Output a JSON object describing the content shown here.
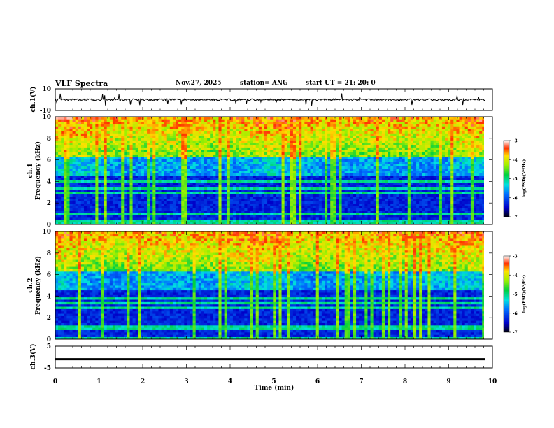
{
  "header": {
    "title": "VLF Spectra",
    "date": "Nov.27, 2025",
    "station": "station= ANG",
    "start": "start  UT  =   21: 20: 0"
  },
  "chart_data": [
    {
      "type": "line",
      "panel": "ch1-waveform",
      "ylabel": "ch.1(V)",
      "ylim": [
        -10,
        10
      ],
      "y_ticks": [
        "10",
        "-10"
      ]
    },
    {
      "type": "heatmap",
      "panel": "ch1-spectrogram",
      "ylabel_line1": "ch.1",
      "ylabel_line2": "Frequency (kHz)",
      "ylim": [
        0,
        10
      ],
      "y_ticks": [
        "0",
        "2",
        "4",
        "6",
        "8",
        "10"
      ],
      "colorbar": {
        "label": "log(PSD)(V²/Hz)",
        "range": [
          -7,
          -3
        ],
        "ticks": [
          "-3",
          "-4",
          "-5",
          "-6",
          "-7"
        ]
      }
    },
    {
      "type": "heatmap",
      "panel": "ch2-spectrogram",
      "ylabel_line1": "ch.2",
      "ylabel_line2": "Frequency (kHz)",
      "ylim": [
        0,
        10
      ],
      "y_ticks": [
        "0",
        "2",
        "4",
        "6",
        "8",
        "10"
      ],
      "colorbar": {
        "label": "log(PSD)(V²/Hz)",
        "range": [
          -7,
          -3
        ],
        "ticks": [
          "-3",
          "-4",
          "-5",
          "-6",
          "-7"
        ]
      }
    },
    {
      "type": "line",
      "panel": "ch3-waveform",
      "ylabel": "ch.3(V)",
      "ylim": [
        -5,
        5
      ],
      "y_ticks": [
        "5",
        "-5"
      ],
      "value_level": -1.0
    }
  ],
  "xaxis": {
    "label": "Time (min)",
    "range": [
      0,
      10
    ],
    "ticks": [
      "0",
      "1",
      "2",
      "3",
      "4",
      "5",
      "6",
      "7",
      "8",
      "9",
      "10"
    ],
    "data_end": 9.83
  }
}
